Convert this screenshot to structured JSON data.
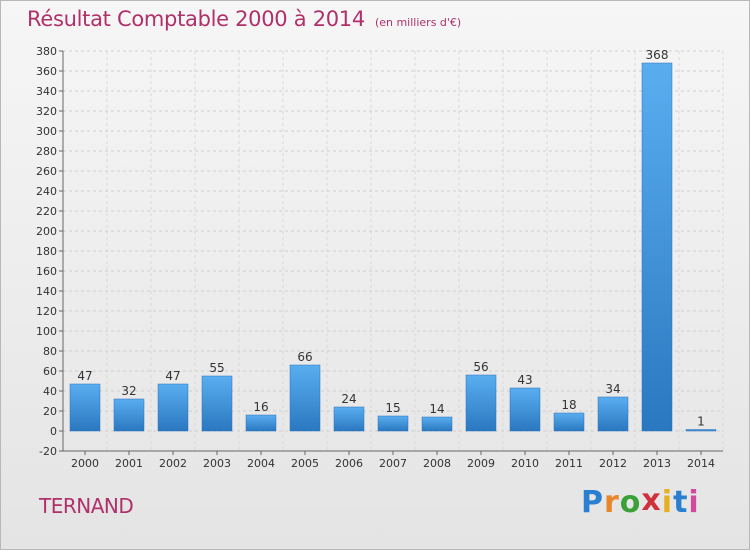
{
  "chart_data": {
    "type": "bar",
    "title": "Résultat Comptable 2000 à 2014",
    "subtitle": "(en milliers d'€)",
    "categories": [
      "2000",
      "2001",
      "2002",
      "2003",
      "2004",
      "2005",
      "2006",
      "2007",
      "2008",
      "2009",
      "2010",
      "2011",
      "2012",
      "2013",
      "2014"
    ],
    "values": [
      47,
      32,
      47,
      55,
      16,
      66,
      24,
      15,
      14,
      56,
      43,
      18,
      34,
      368,
      1
    ],
    "ylim": [
      -20,
      380
    ],
    "yticks": [
      -20,
      0,
      20,
      40,
      60,
      80,
      100,
      120,
      140,
      160,
      180,
      200,
      220,
      240,
      260,
      280,
      300,
      320,
      340,
      360,
      380
    ],
    "grid": true,
    "bar_color": "#3a8fd8"
  },
  "commune": "TERNAND",
  "logo": {
    "letters": [
      "P",
      "r",
      "o",
      "x",
      "i",
      "t",
      "i"
    ],
    "colors": [
      "#2a7fd0",
      "#e8862a",
      "#3aa13a",
      "#d0303a",
      "#e8b020",
      "#2a7fd0",
      "#d04aa0"
    ]
  }
}
